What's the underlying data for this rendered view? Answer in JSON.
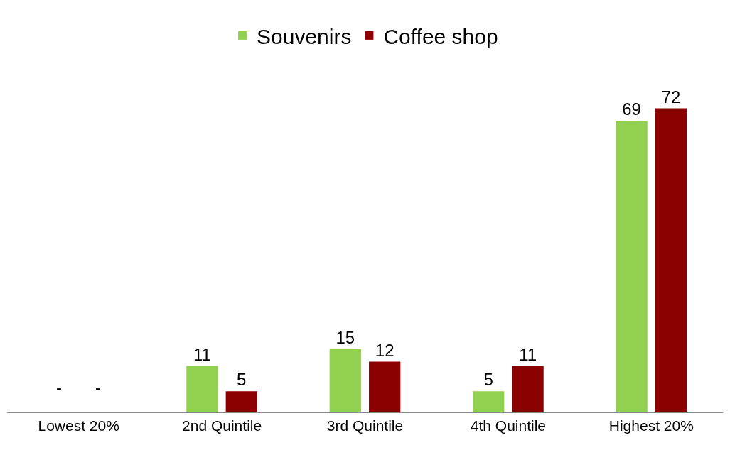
{
  "chart_data": {
    "type": "bar",
    "categories": [
      "Lowest 20%",
      "2nd Quintile",
      "3rd Quintile",
      "4th Quintile",
      "Highest 20%"
    ],
    "series": [
      {
        "name": "Souvenirs",
        "color": "#92d050",
        "values": [
          null,
          11,
          15,
          5,
          69
        ],
        "value_labels": [
          null,
          "11",
          "15",
          "5",
          "69"
        ]
      },
      {
        "name": "Coffee shop",
        "color": "#8b0000",
        "values": [
          null,
          5,
          12,
          11,
          72
        ],
        "value_labels": [
          null,
          "5",
          "12",
          "11",
          "72"
        ]
      }
    ],
    "annotations": [
      "-",
      "-"
    ],
    "legend": "top",
    "grid": false
  }
}
